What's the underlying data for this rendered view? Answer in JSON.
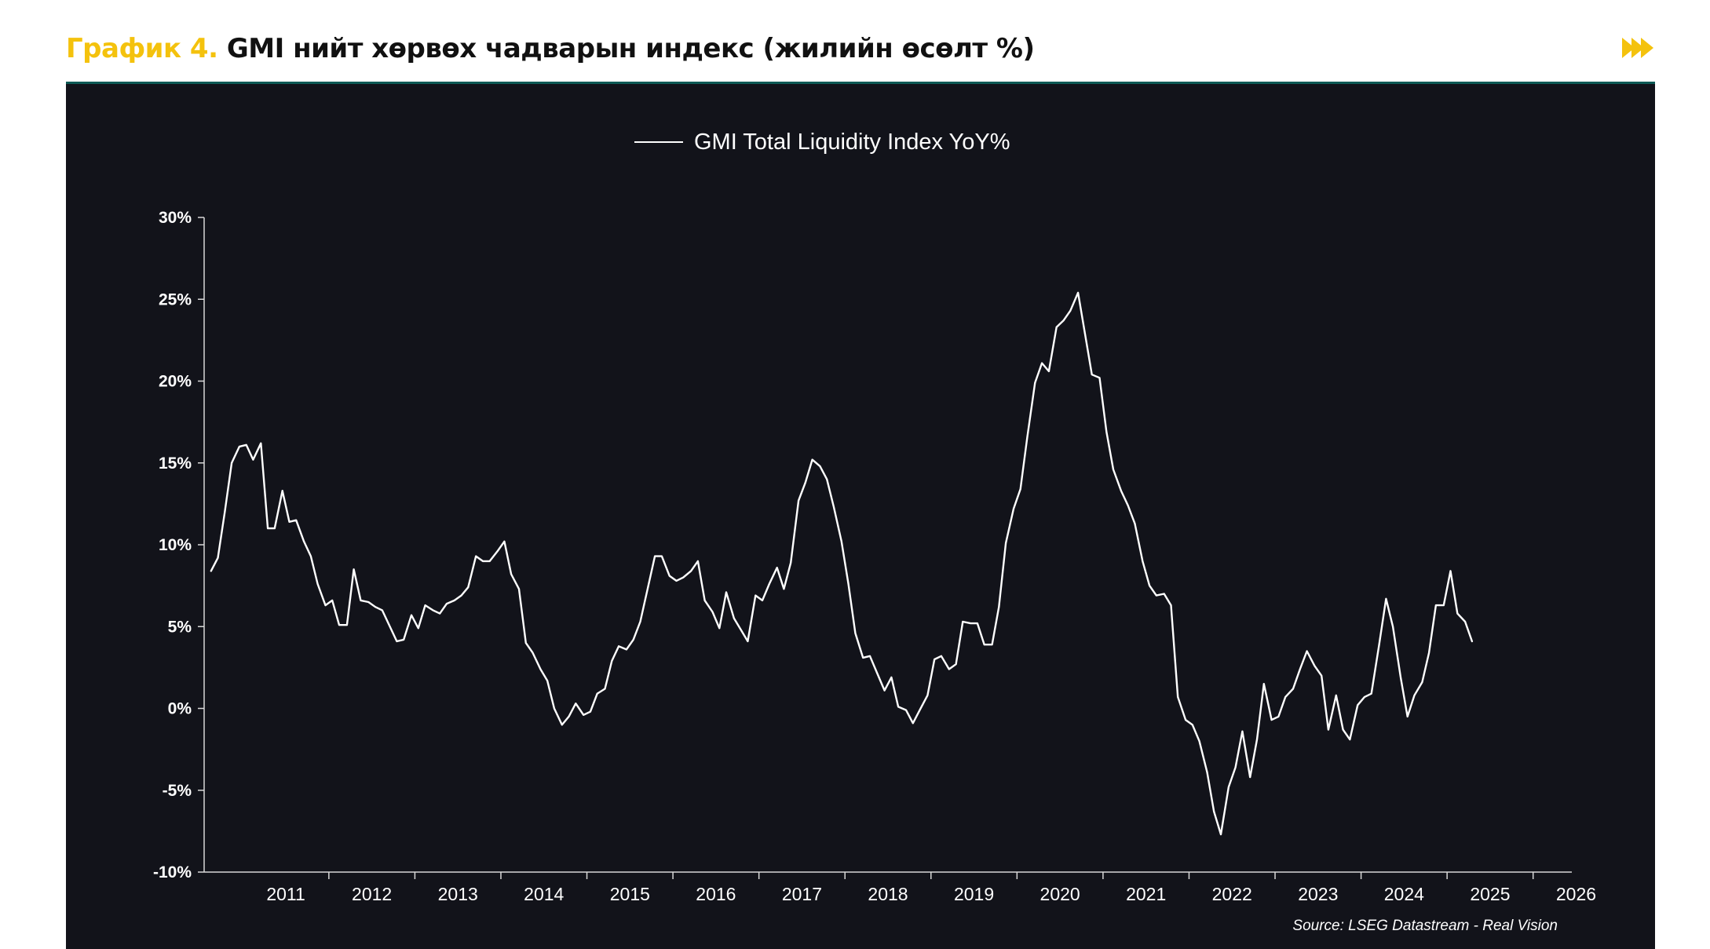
{
  "header": {
    "prefix": "График 4.",
    "title": "GMI нийт хөрвөх чадварын индекс (жилийн өсөлт %)",
    "icon": "fast-forward-icon",
    "accent": "#f4c20d"
  },
  "chart_data": {
    "type": "line",
    "title": "",
    "xlabel": "",
    "ylabel": "",
    "source": "Source: LSEG Datastream - Real Vision",
    "xlim": [
      2010.55,
      2026.45
    ],
    "ylim": [
      -10,
      30
    ],
    "y_ticks": [
      "30%",
      "25%",
      "20%",
      "15%",
      "10%",
      "5%",
      "0%",
      "-5%",
      "-10%"
    ],
    "x_ticks": [
      "2011",
      "2012",
      "2013",
      "2014",
      "2015",
      "2016",
      "2017",
      "2018",
      "2019",
      "2020",
      "2021",
      "2022",
      "2023",
      "2024",
      "2025",
      "2026"
    ],
    "legend": "top-center",
    "grid": false,
    "background": "#12131a",
    "line_color": "#ffffff",
    "series": [
      {
        "name": "GMI Total Liquidity Index YoY%",
        "points": [
          [
            2010.63,
            8.4
          ],
          [
            2010.71,
            9.2
          ],
          [
            2010.79,
            12.0
          ],
          [
            2010.87,
            15.0
          ],
          [
            2010.96,
            16.0
          ],
          [
            2011.04,
            16.1
          ],
          [
            2011.12,
            15.2
          ],
          [
            2011.21,
            16.2
          ],
          [
            2011.29,
            11.0
          ],
          [
            2011.37,
            11.0
          ],
          [
            2011.46,
            13.3
          ],
          [
            2011.54,
            11.4
          ],
          [
            2011.62,
            11.5
          ],
          [
            2011.71,
            10.2
          ],
          [
            2011.79,
            9.3
          ],
          [
            2011.87,
            7.6
          ],
          [
            2011.96,
            6.3
          ],
          [
            2012.04,
            6.6
          ],
          [
            2012.12,
            5.1
          ],
          [
            2012.21,
            5.1
          ],
          [
            2012.29,
            8.5
          ],
          [
            2012.37,
            6.6
          ],
          [
            2012.46,
            6.5
          ],
          [
            2012.54,
            6.2
          ],
          [
            2012.62,
            6.0
          ],
          [
            2012.71,
            5.0
          ],
          [
            2012.79,
            4.1
          ],
          [
            2012.87,
            4.2
          ],
          [
            2012.96,
            5.7
          ],
          [
            2013.04,
            4.9
          ],
          [
            2013.12,
            6.3
          ],
          [
            2013.21,
            6.0
          ],
          [
            2013.29,
            5.8
          ],
          [
            2013.37,
            6.4
          ],
          [
            2013.46,
            6.6
          ],
          [
            2013.54,
            6.9
          ],
          [
            2013.62,
            7.4
          ],
          [
            2013.71,
            9.3
          ],
          [
            2013.79,
            9.0
          ],
          [
            2013.87,
            9.0
          ],
          [
            2013.96,
            9.6
          ],
          [
            2014.04,
            10.2
          ],
          [
            2014.12,
            8.2
          ],
          [
            2014.21,
            7.3
          ],
          [
            2014.29,
            4.0
          ],
          [
            2014.37,
            3.4
          ],
          [
            2014.46,
            2.4
          ],
          [
            2014.54,
            1.7
          ],
          [
            2014.62,
            0.0
          ],
          [
            2014.71,
            -1.0
          ],
          [
            2014.79,
            -0.5
          ],
          [
            2014.87,
            0.3
          ],
          [
            2014.96,
            -0.4
          ],
          [
            2015.04,
            -0.2
          ],
          [
            2015.12,
            0.9
          ],
          [
            2015.21,
            1.2
          ],
          [
            2015.29,
            2.9
          ],
          [
            2015.37,
            3.8
          ],
          [
            2015.46,
            3.6
          ],
          [
            2015.54,
            4.2
          ],
          [
            2015.62,
            5.3
          ],
          [
            2015.71,
            7.4
          ],
          [
            2015.79,
            9.3
          ],
          [
            2015.87,
            9.3
          ],
          [
            2015.96,
            8.1
          ],
          [
            2016.04,
            7.8
          ],
          [
            2016.12,
            8.0
          ],
          [
            2016.21,
            8.4
          ],
          [
            2016.29,
            9.0
          ],
          [
            2016.37,
            6.6
          ],
          [
            2016.46,
            5.9
          ],
          [
            2016.54,
            4.9
          ],
          [
            2016.62,
            7.1
          ],
          [
            2016.71,
            5.5
          ],
          [
            2016.79,
            4.8
          ],
          [
            2016.87,
            4.1
          ],
          [
            2016.96,
            6.9
          ],
          [
            2017.04,
            6.6
          ],
          [
            2017.12,
            7.6
          ],
          [
            2017.21,
            8.6
          ],
          [
            2017.29,
            7.3
          ],
          [
            2017.37,
            8.9
          ],
          [
            2017.46,
            12.7
          ],
          [
            2017.54,
            13.8
          ],
          [
            2017.62,
            15.2
          ],
          [
            2017.71,
            14.8
          ],
          [
            2017.79,
            14.0
          ],
          [
            2017.87,
            12.3
          ],
          [
            2017.96,
            10.2
          ],
          [
            2018.04,
            7.6
          ],
          [
            2018.12,
            4.6
          ],
          [
            2018.21,
            3.1
          ],
          [
            2018.29,
            3.2
          ],
          [
            2018.37,
            2.2
          ],
          [
            2018.46,
            1.1
          ],
          [
            2018.54,
            1.9
          ],
          [
            2018.62,
            0.1
          ],
          [
            2018.71,
            -0.1
          ],
          [
            2018.79,
            -0.9
          ],
          [
            2018.87,
            -0.1
          ],
          [
            2018.96,
            0.8
          ],
          [
            2019.04,
            3.0
          ],
          [
            2019.12,
            3.2
          ],
          [
            2019.21,
            2.4
          ],
          [
            2019.29,
            2.7
          ],
          [
            2019.37,
            5.3
          ],
          [
            2019.46,
            5.2
          ],
          [
            2019.54,
            5.2
          ],
          [
            2019.62,
            3.9
          ],
          [
            2019.71,
            3.9
          ],
          [
            2019.79,
            6.2
          ],
          [
            2019.87,
            10.1
          ],
          [
            2019.96,
            12.2
          ],
          [
            2020.04,
            13.4
          ],
          [
            2020.12,
            16.6
          ],
          [
            2020.21,
            19.9
          ],
          [
            2020.29,
            21.1
          ],
          [
            2020.37,
            20.6
          ],
          [
            2020.46,
            23.3
          ],
          [
            2020.54,
            23.7
          ],
          [
            2020.62,
            24.3
          ],
          [
            2020.71,
            25.4
          ],
          [
            2020.79,
            22.9
          ],
          [
            2020.87,
            20.4
          ],
          [
            2020.96,
            20.2
          ],
          [
            2021.04,
            16.9
          ],
          [
            2021.12,
            14.6
          ],
          [
            2021.21,
            13.3
          ],
          [
            2021.29,
            12.4
          ],
          [
            2021.37,
            11.3
          ],
          [
            2021.46,
            9.0
          ],
          [
            2021.54,
            7.5
          ],
          [
            2021.62,
            6.9
          ],
          [
            2021.71,
            7.0
          ],
          [
            2021.79,
            6.3
          ],
          [
            2021.87,
            0.7
          ],
          [
            2021.96,
            -0.7
          ],
          [
            2022.04,
            -1.0
          ],
          [
            2022.12,
            -2.0
          ],
          [
            2022.21,
            -3.9
          ],
          [
            2022.29,
            -6.3
          ],
          [
            2022.37,
            -7.7
          ],
          [
            2022.46,
            -4.8
          ],
          [
            2022.54,
            -3.6
          ],
          [
            2022.62,
            -1.4
          ],
          [
            2022.71,
            -4.2
          ],
          [
            2022.79,
            -1.9
          ],
          [
            2022.87,
            1.5
          ],
          [
            2022.96,
            -0.7
          ],
          [
            2023.04,
            -0.5
          ],
          [
            2023.12,
            0.7
          ],
          [
            2023.21,
            1.2
          ],
          [
            2023.29,
            2.4
          ],
          [
            2023.37,
            3.5
          ],
          [
            2023.46,
            2.6
          ],
          [
            2023.54,
            2.0
          ],
          [
            2023.62,
            -1.3
          ],
          [
            2023.71,
            0.8
          ],
          [
            2023.79,
            -1.3
          ],
          [
            2023.87,
            -1.9
          ],
          [
            2023.96,
            0.2
          ],
          [
            2024.04,
            0.7
          ],
          [
            2024.12,
            0.9
          ],
          [
            2024.21,
            3.9
          ],
          [
            2024.29,
            6.7
          ],
          [
            2024.37,
            5.0
          ],
          [
            2024.46,
            1.9
          ],
          [
            2024.54,
            -0.5
          ],
          [
            2024.62,
            0.8
          ],
          [
            2024.71,
            1.6
          ],
          [
            2024.79,
            3.4
          ],
          [
            2024.87,
            6.3
          ],
          [
            2024.96,
            6.3
          ],
          [
            2025.04,
            8.4
          ],
          [
            2025.12,
            5.8
          ],
          [
            2025.21,
            5.3
          ],
          [
            2025.29,
            4.1
          ]
        ]
      }
    ]
  }
}
